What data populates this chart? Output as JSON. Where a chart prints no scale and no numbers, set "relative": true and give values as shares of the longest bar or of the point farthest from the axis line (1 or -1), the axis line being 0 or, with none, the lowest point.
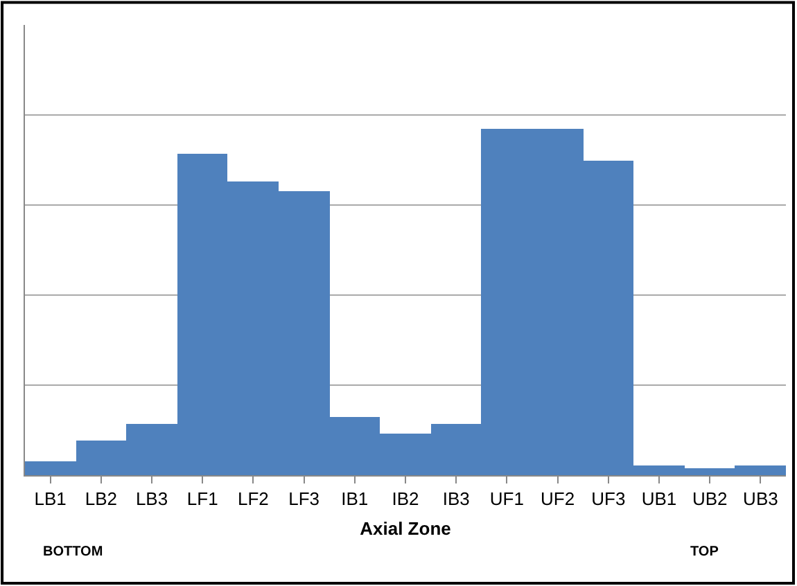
{
  "chart_data": {
    "type": "bar",
    "relative": true,
    "categories": [
      "LB1",
      "LB2",
      "LB3",
      "LF1",
      "LF2",
      "LF3",
      "IB1",
      "IB2",
      "IB3",
      "UF1",
      "UF2",
      "UF3",
      "UB1",
      "UB2",
      "UB3"
    ],
    "values": [
      0.04,
      0.1,
      0.15,
      0.93,
      0.85,
      0.82,
      0.17,
      0.12,
      0.15,
      1.0,
      1.0,
      0.91,
      0.03,
      0.02,
      0.03
    ],
    "color": "#4f81bd",
    "xlabel": "Axial Zone",
    "annotations": [
      "BOTTOM",
      "TOP"
    ],
    "grid": "y",
    "legend": false
  }
}
